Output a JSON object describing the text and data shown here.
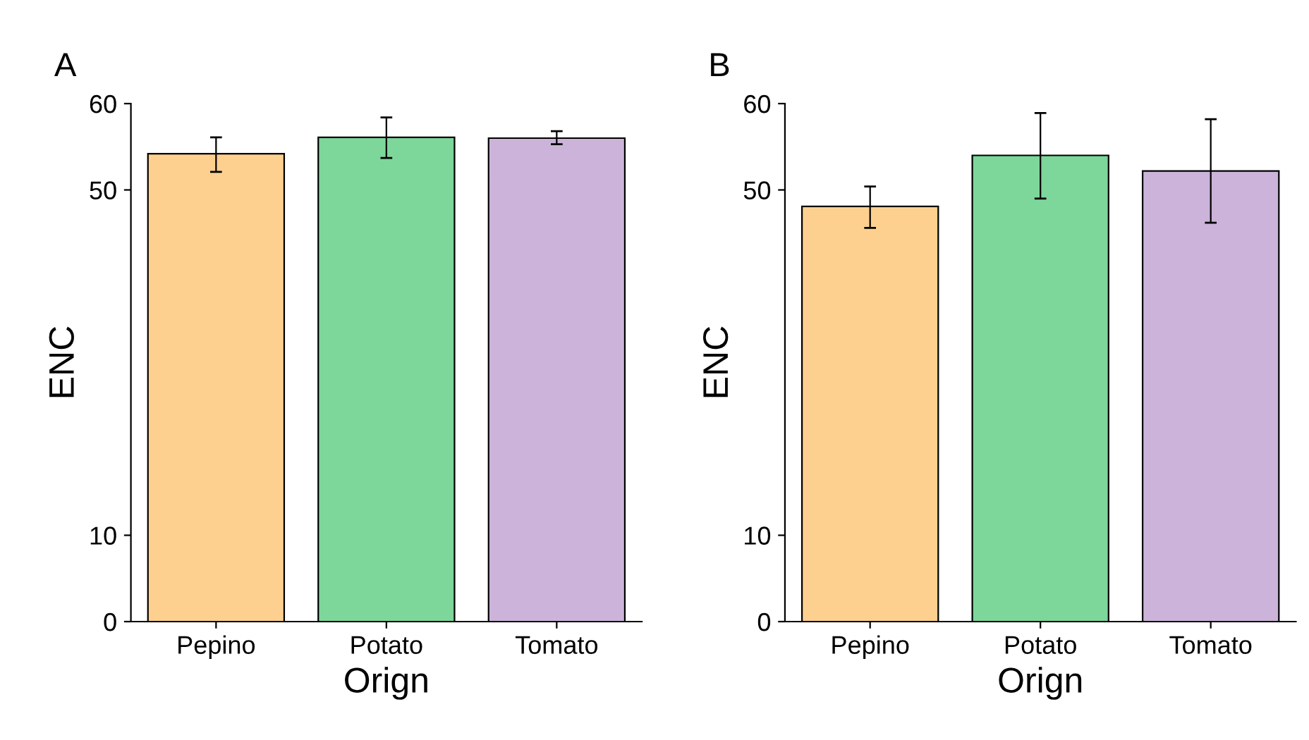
{
  "chart_data": [
    {
      "type": "bar",
      "title": "A",
      "xlabel": "Orign",
      "ylabel": "ENC",
      "categories": [
        "Pepino",
        "Potato",
        "Tomato"
      ],
      "values": [
        54.2,
        56.1,
        56.0
      ],
      "errors": [
        [
          52.1,
          56.1
        ],
        [
          53.7,
          58.4
        ],
        [
          55.3,
          56.8
        ]
      ],
      "colors": [
        "#fdd08f",
        "#7dd69a",
        "#cbb3d9"
      ],
      "ylim": [
        0,
        60
      ],
      "yticks": [
        0,
        10,
        50,
        60
      ]
    },
    {
      "type": "bar",
      "title": "B",
      "xlabel": "Orign",
      "ylabel": "ENC",
      "categories": [
        "Pepino",
        "Potato",
        "Tomato"
      ],
      "values": [
        48.1,
        54.0,
        52.2
      ],
      "errors": [
        [
          45.6,
          50.4
        ],
        [
          49.0,
          58.9
        ],
        [
          46.2,
          58.2
        ]
      ],
      "colors": [
        "#fdd08f",
        "#7dd69a",
        "#cbb3d9"
      ],
      "ylim": [
        0,
        60
      ],
      "yticks": [
        0,
        10,
        50,
        60
      ]
    }
  ]
}
